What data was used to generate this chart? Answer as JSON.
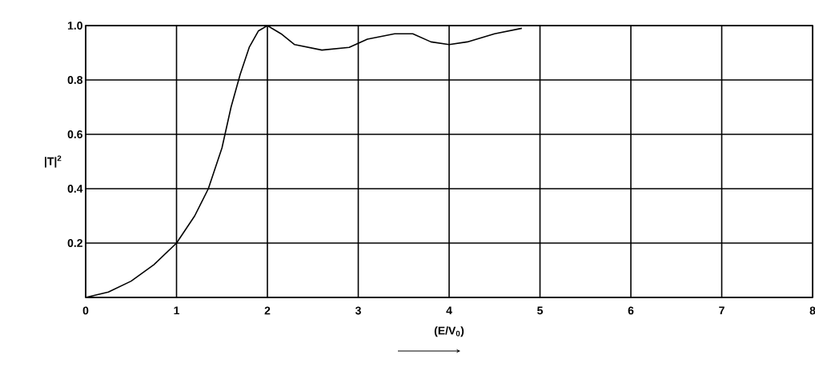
{
  "chart_data": {
    "type": "line",
    "xlabel": "(E/V$_{0}$)",
    "ylabel": "|T|$^{2}$",
    "x": [
      0,
      0.25,
      0.5,
      0.75,
      1,
      1.2,
      1.35,
      1.5,
      1.6,
      1.7,
      1.8,
      1.9,
      2,
      2.15,
      2.3,
      2.6,
      2.9,
      3.1,
      3.4,
      3.6,
      3.8,
      4,
      4.2,
      4.5,
      4.8
    ],
    "values": [
      0,
      0.02,
      0.06,
      0.12,
      0.2,
      0.3,
      0.4,
      0.55,
      0.7,
      0.82,
      0.92,
      0.98,
      1.0,
      0.97,
      0.93,
      0.91,
      0.92,
      0.95,
      0.97,
      0.97,
      0.94,
      0.93,
      0.94,
      0.97,
      0.99
    ],
    "color": "#000000",
    "xlim": [
      0,
      8
    ],
    "ylim": [
      0,
      1
    ],
    "xticks": [
      0,
      1,
      2,
      3,
      4,
      5,
      6,
      7,
      8
    ],
    "yticks": [
      {
        "value": 0,
        "label": null
      },
      0.2,
      0.4,
      0.6,
      0.8,
      {
        "value": 1,
        "label": "1.0"
      }
    ],
    "grid": true,
    "marker": "none",
    "line_style": "solid"
  }
}
